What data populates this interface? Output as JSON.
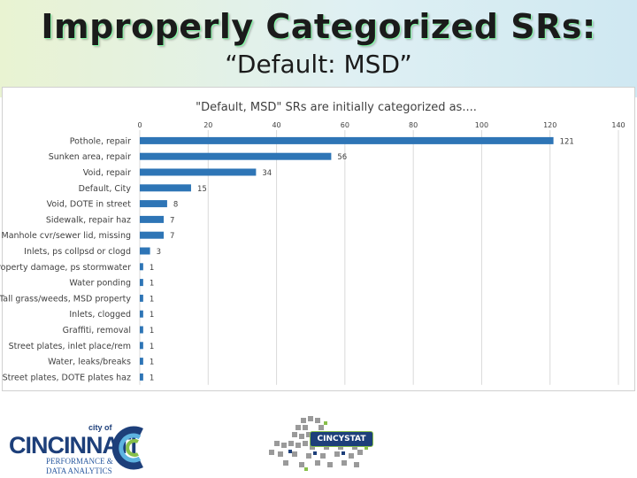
{
  "slide": {
    "title": "Improperly Categorized SRs:",
    "subtitle": "“Default: MSD”"
  },
  "footer": {
    "city_of": "city of",
    "city_name": "CINCINNATI",
    "dept_line1": "PERFORMANCE &",
    "dept_line2": "DATA ANALYTICS",
    "stat_badge": "CINCYSTAT"
  },
  "colors": {
    "bar": "#2e75b6",
    "gridline": "#d9d9d9",
    "text": "#404040",
    "brand_blue": "#1d3f7a",
    "brand_green": "#88c04a"
  },
  "chart_data": {
    "type": "bar",
    "orientation": "horizontal",
    "title": "\"Default, MSD\" SRs are initially categorized as....",
    "categories": [
      "Pothole, repair",
      "Sunken area, repair",
      "Void, repair",
      "Default, City",
      "Void, DOTE in street",
      "Sidewalk, repair haz",
      "Manhole cvr/sewer lid, missing",
      "Inlets, ps collpsd or clogd",
      "Property damage, ps stormwater",
      "Water ponding",
      "Tall grass/weeds, MSD property",
      "Inlets, clogged",
      "Graffiti, removal",
      "Street plates, inlet place/rem",
      "Water, leaks/breaks",
      "Street plates, DOTE plates haz"
    ],
    "values": [
      121,
      56,
      34,
      15,
      8,
      7,
      7,
      3,
      1,
      1,
      1,
      1,
      1,
      1,
      1,
      1
    ],
    "xlim": [
      0,
      140
    ],
    "x_ticks": [
      0,
      20,
      40,
      60,
      80,
      100,
      120,
      140
    ],
    "grid": true,
    "data_labels": true
  }
}
